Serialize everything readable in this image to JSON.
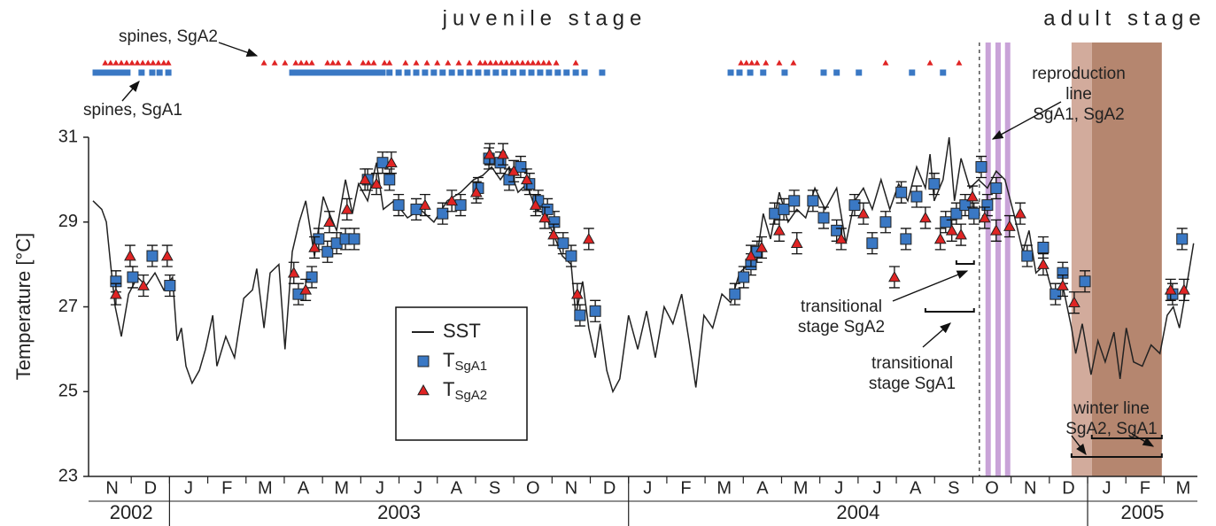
{
  "chart_data": {
    "type": "line",
    "y_label": "Temperature [°C]",
    "ylim": [
      23,
      31
    ],
    "yticks": [
      23,
      25,
      27,
      29,
      31
    ],
    "xlim": [
      0,
      28.87
    ],
    "categories": [
      "N",
      "D",
      "J",
      "F",
      "M",
      "A",
      "M",
      "J",
      "J",
      "A",
      "S",
      "O",
      "N",
      "D",
      "J",
      "F",
      "M",
      "A",
      "M",
      "J",
      "J",
      "A",
      "S",
      "O",
      "N",
      "D",
      "J",
      "F",
      "M"
    ],
    "years": [
      {
        "label": "2002",
        "span": [
          0,
          2
        ]
      },
      {
        "label": "2003",
        "span": [
          2,
          14
        ]
      },
      {
        "label": "2004",
        "span": [
          14,
          26
        ]
      },
      {
        "label": "2005",
        "span": [
          26,
          28.87
        ]
      }
    ],
    "series": [
      {
        "name": "SST",
        "color": "#222222",
        "x": [
          0,
          0.23,
          0.35,
          0.46,
          0.58,
          0.74,
          0.93,
          1.16,
          1.39,
          1.62,
          1.85,
          2.08,
          2.2,
          2.31,
          2.43,
          2.59,
          2.78,
          2.94,
          3.13,
          3.24,
          3.47,
          3.7,
          3.94,
          4.17,
          4.28,
          4.47,
          4.63,
          4.86,
          5.02,
          5.21,
          5.39,
          5.56,
          5.79,
          6.02,
          6.18,
          6.37,
          6.6,
          6.78,
          6.94,
          7.18,
          7.41,
          7.59,
          7.87,
          8.22,
          8.56,
          8.91,
          9.26,
          9.61,
          9.95,
          10.19,
          10.42,
          10.65,
          10.88,
          11.11,
          11.34,
          11.57,
          11.81,
          12.04,
          12.27,
          12.5,
          12.62,
          12.8,
          12.96,
          13.13,
          13.26,
          13.43,
          13.59,
          13.77,
          14.0,
          14.24,
          14.47,
          14.7,
          14.93,
          15.16,
          15.39,
          15.58,
          15.76,
          15.97,
          16.2,
          16.44,
          16.67,
          16.9,
          17.13,
          17.36,
          17.52,
          17.71,
          17.94,
          18.17,
          18.4,
          18.63,
          18.87,
          19.14,
          19.44,
          19.68,
          19.91,
          20.14,
          20.37,
          20.6,
          20.83,
          21.06,
          21.3,
          21.53,
          21.76,
          21.88,
          21.99,
          22.22,
          22.38,
          22.52,
          22.69,
          22.92,
          23.15,
          23.38,
          23.61,
          23.84,
          24.07,
          24.31,
          24.47,
          24.65,
          24.88,
          25.12,
          25.35,
          25.58,
          25.69,
          25.86,
          26.09,
          26.27,
          26.46,
          26.69,
          26.85,
          27.01,
          27.2,
          27.43,
          27.66,
          27.89,
          28.08,
          28.24,
          28.4,
          28.59,
          28.77
        ],
        "values": [
          29.5,
          29.3,
          29.0,
          28.0,
          27.0,
          26.3,
          27.3,
          27.7,
          27.5,
          27.8,
          27.4,
          27.7,
          26.2,
          26.5,
          25.6,
          25.2,
          25.5,
          26.0,
          26.8,
          25.6,
          26.3,
          25.8,
          27.2,
          27.4,
          27.9,
          26.5,
          27.8,
          28.0,
          26.0,
          28.3,
          29.0,
          29.5,
          28.2,
          29.6,
          29.2,
          28.8,
          30.0,
          29.2,
          29.9,
          29.5,
          30.4,
          29.3,
          29.5,
          29.1,
          29.3,
          29.0,
          29.5,
          29.7,
          30.0,
          30.1,
          30.3,
          30.0,
          30.3,
          29.7,
          29.9,
          29.3,
          29.2,
          28.7,
          28.2,
          28.0,
          26.8,
          27.6,
          26.5,
          25.8,
          26.6,
          25.5,
          25.0,
          25.3,
          26.8,
          26.0,
          26.9,
          25.8,
          27.0,
          26.6,
          27.3,
          26.2,
          25.1,
          26.8,
          26.5,
          27.3,
          27.1,
          27.8,
          28.0,
          28.2,
          29.2,
          28.6,
          29.7,
          29.0,
          29.3,
          29.1,
          29.8,
          29.3,
          29.8,
          28.5,
          29.5,
          29.8,
          29.3,
          30.0,
          29.3,
          29.9,
          29.5,
          30.3,
          29.8,
          30.6,
          29.5,
          30.0,
          31.0,
          29.5,
          30.5,
          29.8,
          30.0,
          29.8,
          30.2,
          30.0,
          29.2,
          28.3,
          28.8,
          27.8,
          28.0,
          27.2,
          27.5,
          26.5,
          25.9,
          26.6,
          25.4,
          26.2,
          25.7,
          26.4,
          25.3,
          26.5,
          25.7,
          25.6,
          26.1,
          25.9,
          26.8,
          27.0,
          26.5,
          27.5,
          28.5
        ]
      },
      {
        "name": "TSgA1",
        "marker": "square",
        "color": "#3a78c4",
        "error": 0.25,
        "x": [
          0.6,
          1.04,
          1.55,
          2.01,
          5.37,
          5.72,
          5.9,
          6.13,
          6.37,
          6.6,
          6.83,
          7.18,
          7.57,
          7.75,
          7.99,
          8.45,
          9.14,
          9.61,
          10.07,
          10.35,
          10.65,
          10.88,
          11.18,
          11.41,
          11.64,
          11.88,
          12.06,
          12.29,
          12.5,
          12.73,
          13.13,
          16.78,
          17.01,
          17.2,
          17.36,
          17.82,
          18.06,
          18.33,
          18.82,
          19.1,
          19.44,
          19.91,
          20.37,
          20.72,
          21.13,
          21.25,
          21.53,
          21.99,
          22.29,
          22.57,
          22.8,
          23.03,
          23.22,
          23.38,
          23.61,
          24.42,
          24.84,
          25.16,
          25.35,
          25.93,
          28.22,
          28.47
        ],
        "values": [
          27.6,
          27.7,
          28.2,
          27.5,
          27.3,
          27.7,
          28.6,
          28.3,
          28.5,
          28.6,
          28.6,
          30.0,
          30.4,
          30.0,
          29.4,
          29.3,
          29.2,
          29.4,
          29.8,
          30.5,
          30.4,
          30.0,
          30.3,
          29.9,
          29.5,
          29.3,
          29.0,
          28.5,
          28.2,
          26.8,
          26.9,
          27.3,
          27.7,
          28.0,
          28.3,
          29.2,
          29.3,
          29.5,
          29.5,
          29.1,
          28.8,
          29.4,
          28.5,
          29.0,
          29.7,
          28.6,
          29.6,
          29.9,
          29.0,
          29.2,
          29.4,
          29.2,
          30.3,
          29.4,
          29.8,
          28.2,
          28.4,
          27.3,
          27.8,
          27.6,
          27.3,
          28.6
        ]
      },
      {
        "name": "TSgA2",
        "marker": "triangle",
        "color": "#e02424",
        "error": 0.25,
        "x": [
          0.6,
          0.97,
          1.32,
          1.94,
          5.25,
          5.56,
          5.79,
          6.18,
          6.64,
          7.11,
          7.41,
          7.8,
          8.68,
          9.38,
          10.02,
          10.37,
          10.72,
          11.0,
          11.34,
          11.57,
          11.81,
          12.04,
          12.66,
          12.96,
          17.2,
          17.48,
          17.94,
          18.4,
          19.56,
          20.14,
          20.95,
          21.76,
          22.15,
          22.45,
          22.69,
          22.99,
          23.31,
          23.61,
          23.96,
          24.24,
          24.84,
          25.35,
          25.65,
          28.17,
          28.52
        ],
        "values": [
          27.3,
          28.2,
          27.5,
          28.2,
          27.8,
          27.4,
          28.4,
          29.0,
          29.3,
          30.0,
          29.9,
          30.4,
          29.4,
          29.5,
          29.7,
          30.6,
          30.6,
          30.2,
          30.0,
          29.4,
          29.1,
          28.7,
          27.3,
          28.6,
          28.2,
          28.4,
          28.8,
          28.5,
          28.6,
          29.2,
          27.7,
          29.1,
          28.6,
          28.8,
          28.7,
          29.6,
          29.1,
          28.8,
          28.9,
          29.2,
          28.0,
          27.5,
          27.1,
          27.4,
          27.4
        ]
      }
    ],
    "spines": [
      {
        "color": "#e02424",
        "marker": "triangle",
        "x": [
          0.32,
          0.46,
          0.6,
          0.74,
          0.88,
          1.02,
          1.16,
          1.3,
          1.44,
          1.57,
          1.71,
          1.85,
          1.97,
          4.47,
          4.75,
          5.02,
          5.3,
          5.44,
          5.58,
          5.72,
          6.13,
          6.27,
          6.41,
          6.69,
          7.06,
          7.2,
          7.34,
          7.62,
          7.75,
          8.17,
          8.45,
          8.73,
          9.0,
          9.28,
          9.56,
          9.84,
          10.12,
          10.25,
          10.39,
          10.53,
          10.67,
          10.81,
          10.95,
          11.09,
          11.23,
          11.37,
          11.5,
          11.64,
          11.78,
          11.92,
          12.11,
          12.62,
          16.94,
          17.08,
          17.22,
          17.36,
          17.59,
          17.94,
          18.31,
          20.72,
          21.88,
          22.64
        ]
      },
      {
        "color": "#3a78c4",
        "marker": "square",
        "x": [
          0.07,
          0.21,
          0.35,
          0.49,
          0.63,
          0.76,
          0.9,
          1.27,
          1.55,
          1.74,
          1.97,
          5.21,
          5.35,
          5.49,
          5.63,
          5.76,
          5.9,
          6.04,
          6.18,
          6.32,
          6.46,
          6.6,
          6.74,
          6.88,
          7.01,
          7.15,
          7.29,
          7.43,
          7.57,
          7.75,
          7.99,
          8.22,
          8.45,
          8.68,
          8.91,
          9.14,
          9.38,
          9.61,
          9.84,
          10.07,
          10.3,
          10.53,
          10.76,
          10.99,
          11.23,
          11.46,
          11.69,
          11.92,
          12.15,
          12.38,
          12.62,
          12.85,
          13.31,
          16.67,
          16.9,
          17.18,
          17.52,
          18.08,
          19.1,
          19.44,
          20.02,
          21.41,
          22.22
        ]
      }
    ],
    "dashed_line": 23.17,
    "reproduction_lines": {
      "color": "#c9a3d8",
      "x": [
        23.4,
        23.66,
        23.91
      ]
    },
    "shading": [
      {
        "x": [
          25.58,
          26.11
        ],
        "color": "#d2ab9c"
      },
      {
        "x": [
          26.11,
          27.94
        ],
        "color": "#b5866f"
      }
    ],
    "ranges": [
      {
        "x": [
          22.57,
          23.03
        ]
      },
      {
        "x": [
          21.76,
          23.03
        ]
      },
      {
        "x": [
          25.58,
          27.94
        ]
      },
      {
        "x": [
          26.11,
          27.94
        ]
      }
    ],
    "annotations": [
      {
        "lines": [
          "juvenile stage"
        ]
      },
      {
        "lines": [
          "adult stage"
        ]
      },
      {
        "lines": [
          "spines, SgA2"
        ]
      },
      {
        "lines": [
          "spines, SgA1"
        ]
      },
      {
        "lines": [
          "reproduction",
          "line",
          "SgA1, SgA2"
        ]
      },
      {
        "lines": [
          "transitional",
          "stage SgA2"
        ]
      },
      {
        "lines": [
          "transitional",
          "stage SgA1"
        ]
      },
      {
        "lines": [
          "winter line",
          "SgA2, SgA1"
        ]
      }
    ]
  }
}
